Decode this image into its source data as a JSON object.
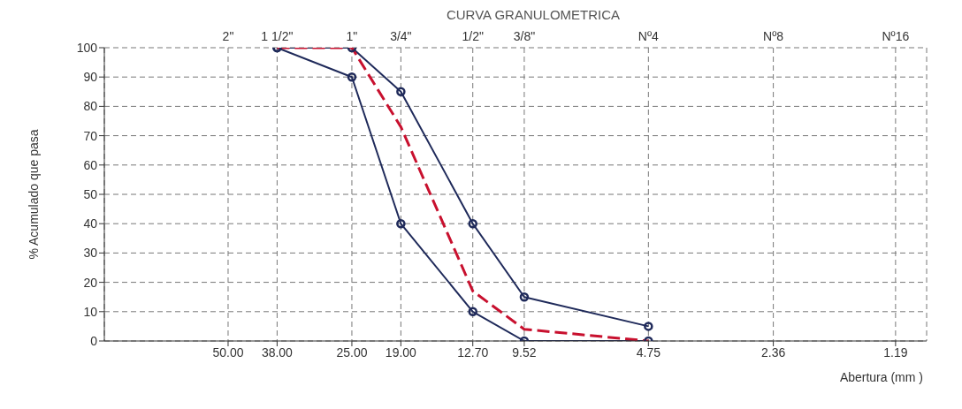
{
  "chart_data": {
    "type": "line",
    "title": "CURVA GRANULOMETRICA",
    "xlabel": "Abertura (mm )",
    "ylabel": "% Acumulado que pasa",
    "log": "x",
    "xlim": [
      100,
      1
    ],
    "ylim": [
      0,
      100
    ],
    "xticks": [
      {
        "value": 50,
        "label": "50.00"
      },
      {
        "value": 38,
        "label": "38.00"
      },
      {
        "value": 25,
        "label": "25.00"
      },
      {
        "value": 19,
        "label": "19.00"
      },
      {
        "value": 12.7,
        "label": "12.70"
      },
      {
        "value": 9.52,
        "label": "9.52"
      },
      {
        "value": 4.75,
        "label": "4.75"
      },
      {
        "value": 2.36,
        "label": "2.36"
      },
      {
        "value": 1.19,
        "label": "1.19"
      }
    ],
    "annotations": [
      "2\"",
      "1 1/2\"",
      "1\"",
      "3/4\"",
      "1/2\"",
      "3/8\"",
      "Nº4",
      "Nº8",
      "Nº16"
    ],
    "yticks": [
      0,
      10,
      20,
      30,
      40,
      50,
      60,
      70,
      80,
      90,
      100
    ],
    "grid": true,
    "marker": "circle",
    "series": [
      {
        "color": "#1f2a5a",
        "x": [
          38,
          25,
          19,
          12.7,
          9.52,
          4.75
        ],
        "values": [
          100,
          100,
          85,
          40,
          15,
          5
        ]
      },
      {
        "color": "#1f2a5a",
        "x": [
          38,
          25,
          19,
          12.7,
          9.52,
          4.75
        ],
        "values": [
          100,
          90,
          40,
          10,
          0,
          0
        ]
      },
      {
        "color": "#c8102e",
        "x": [
          38,
          25,
          19,
          12.7,
          9.52,
          4.75
        ],
        "values": [
          100,
          100,
          73,
          17,
          4,
          0
        ],
        "line_style": "dashed",
        "marker": "none"
      }
    ]
  }
}
